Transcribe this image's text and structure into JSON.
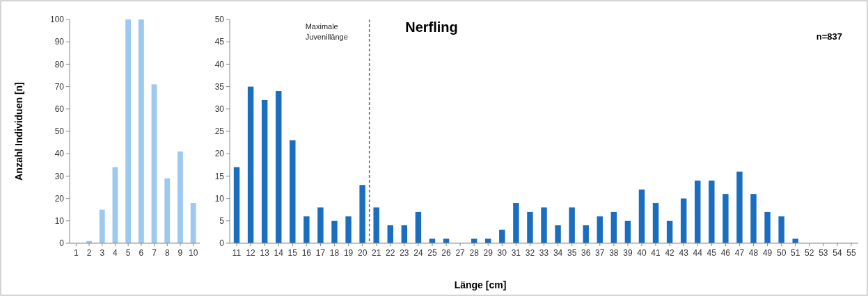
{
  "chart_data": [
    {
      "type": "bar",
      "ylabel": "Anzahl Individuen [n]",
      "x": [
        1,
        2,
        3,
        4,
        5,
        6,
        7,
        8,
        9,
        10
      ],
      "xlim": [
        0.5,
        10.5
      ],
      "xticks": [
        1,
        2,
        3,
        4,
        5,
        6,
        7,
        8,
        9,
        10
      ],
      "ylim": [
        0,
        100
      ],
      "yticks": [
        0,
        10,
        20,
        30,
        40,
        50,
        60,
        70,
        80,
        90,
        100
      ],
      "series": [
        {
          "color": "#9dc9f0",
          "values": [
            0,
            1,
            15,
            34,
            100,
            100,
            71,
            29,
            41,
            18
          ]
        }
      ],
      "grid": false
    },
    {
      "type": "bar",
      "title": "Nerfling",
      "xlabel": "Länge [cm]",
      "annotations": [
        "n=837"
      ],
      "x": [
        11,
        12,
        13,
        14,
        15,
        16,
        17,
        18,
        19,
        20,
        21,
        22,
        23,
        24,
        25,
        26,
        27,
        28,
        29,
        30,
        31,
        32,
        33,
        34,
        35,
        36,
        37,
        38,
        39,
        40,
        41,
        42,
        43,
        44,
        45,
        46,
        47,
        48,
        49,
        50,
        51,
        52,
        53,
        54,
        55
      ],
      "xlim": [
        10.5,
        55.5
      ],
      "xticks": [
        11,
        12,
        13,
        14,
        15,
        16,
        17,
        18,
        19,
        20,
        21,
        22,
        23,
        24,
        25,
        26,
        27,
        28,
        29,
        30,
        31,
        32,
        33,
        34,
        35,
        36,
        37,
        38,
        39,
        40,
        41,
        42,
        43,
        44,
        45,
        46,
        47,
        48,
        49,
        50,
        51,
        52,
        53,
        54,
        55
      ],
      "ylim": [
        0,
        50
      ],
      "yticks": [
        0,
        5,
        10,
        15,
        20,
        25,
        30,
        35,
        40,
        45,
        50
      ],
      "series": [
        {
          "color": "#1a6ec0",
          "values": [
            17,
            35,
            32,
            34,
            23,
            6,
            8,
            5,
            6,
            13,
            8,
            4,
            4,
            7,
            1,
            1,
            0,
            1,
            1,
            3,
            9,
            7,
            8,
            4,
            8,
            4,
            6,
            7,
            5,
            12,
            9,
            5,
            10,
            14,
            14,
            11,
            16,
            11,
            7,
            6,
            1,
            0,
            0,
            0,
            0
          ]
        }
      ],
      "ref_lines": [
        {
          "axis": "x",
          "value": 20.5,
          "label": "Maximale Juvenillänge",
          "color": "#666666",
          "line_style": "dashed"
        }
      ],
      "grid": false
    }
  ]
}
